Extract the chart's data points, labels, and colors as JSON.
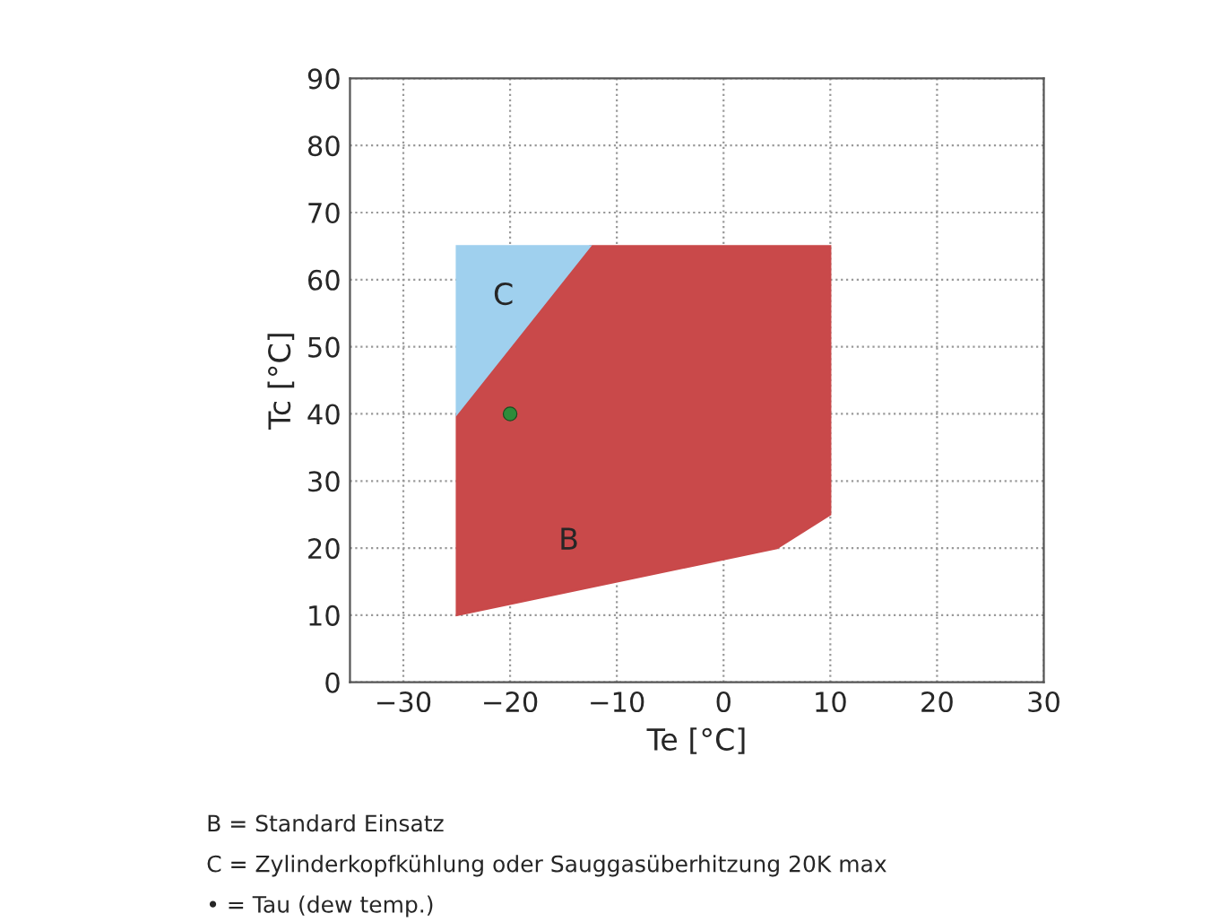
{
  "chart_data": {
    "type": "area",
    "xlabel": "Te [°C]",
    "ylabel": "Tc [°C]",
    "xlim": [
      -35,
      30
    ],
    "xticks": [
      {
        "value": -30,
        "label": "−30"
      },
      {
        "value": -20,
        "label": "−20"
      },
      {
        "value": -10,
        "label": "−10"
      },
      0,
      10,
      20,
      30
    ],
    "ylim": [
      0,
      90
    ],
    "yticks": [
      0,
      10,
      20,
      30,
      40,
      50,
      60,
      70,
      80,
      90
    ],
    "grid": true,
    "series": [
      {
        "name": "B",
        "color": "#c9494a",
        "x": [
          -25,
          5,
          10,
          10,
          -12.5,
          -25
        ],
        "values": [
          10,
          20,
          25,
          65,
          65,
          40
        ]
      },
      {
        "name": "C",
        "color": "#9fd0ee",
        "x": [
          -25,
          -25,
          -12.5
        ],
        "values": [
          40,
          65,
          65
        ]
      },
      {
        "type": "scatter",
        "color": "#2e8b3a",
        "x": [
          -20
        ],
        "values": [
          40
        ],
        "marker": "circle"
      }
    ],
    "annotations": [
      "B = Standard Einsatz",
      "C = Zylinderkopfkühlung oder Sauggasüberhitzung 20K max",
      "• = Tau (dew temp.)"
    ]
  }
}
